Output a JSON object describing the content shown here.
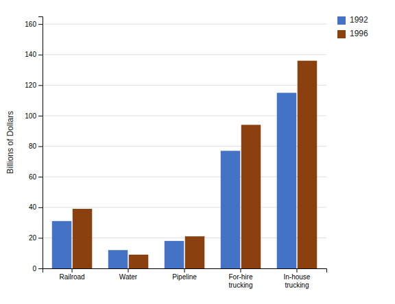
{
  "chart_data": {
    "type": "bar",
    "categories": [
      "Railroad",
      "Water",
      "Pipeline",
      "For-hire\ntrucking",
      "In-house\ntrucking"
    ],
    "series": [
      {
        "name": "1992",
        "color": "#4472C4",
        "values": [
          31,
          12,
          18,
          77,
          115
        ]
      },
      {
        "name": "1996",
        "color": "#8B4010",
        "values": [
          39,
          9,
          21,
          94,
          136
        ]
      }
    ],
    "ylabel": "Billions of Dollars",
    "ylim": [
      0,
      165
    ],
    "yticks": [
      0,
      20,
      40,
      60,
      80,
      100,
      120,
      140,
      160
    ],
    "grid": true,
    "legend": "upper right"
  }
}
